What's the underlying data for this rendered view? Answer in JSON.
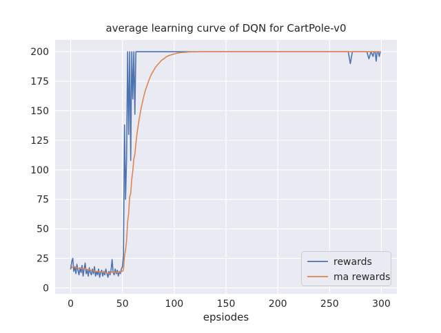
{
  "chart_data": {
    "type": "line",
    "title": "average learning curve of DQN for CartPole-v0",
    "xlabel": "epsiodes",
    "ylabel": "",
    "xlim": [
      -15,
      315
    ],
    "ylim": [
      -5,
      210
    ],
    "xticks": [
      0,
      50,
      100,
      150,
      200,
      250,
      300
    ],
    "yticks": [
      0,
      25,
      50,
      75,
      100,
      125,
      150,
      175,
      200
    ],
    "grid": true,
    "legend_position": "lower right",
    "colors": {
      "axes_background": "#EAEAF2",
      "grid": "#FFFFFF",
      "text": "#262626"
    },
    "series": [
      {
        "name": "rewards",
        "color": "#4C72B0",
        "x": [
          0,
          1,
          2,
          3,
          4,
          5,
          6,
          7,
          8,
          9,
          10,
          11,
          12,
          13,
          14,
          15,
          16,
          17,
          18,
          19,
          20,
          21,
          22,
          23,
          24,
          25,
          26,
          27,
          28,
          29,
          30,
          31,
          32,
          33,
          34,
          35,
          36,
          37,
          38,
          39,
          40,
          41,
          42,
          43,
          44,
          45,
          46,
          47,
          48,
          49,
          50,
          51,
          52,
          53,
          54,
          55,
          56,
          57,
          58,
          59,
          60,
          61,
          62,
          63,
          64,
          70,
          80,
          100,
          150,
          200,
          250,
          266,
          268,
          270,
          272,
          284,
          286,
          288,
          290,
          292,
          293,
          294,
          295,
          296,
          297,
          298,
          299
        ],
        "y": [
          16,
          22,
          25,
          14,
          18,
          12,
          20,
          15,
          11,
          17,
          13,
          19,
          10,
          16,
          21,
          12,
          15,
          10,
          17,
          13,
          11,
          16,
          12,
          18,
          10,
          14,
          11,
          16,
          9,
          13,
          15,
          10,
          14,
          11,
          16,
          12,
          9,
          14,
          11,
          15,
          24,
          13,
          11,
          16,
          12,
          15,
          10,
          14,
          12,
          16,
          18,
          28,
          138,
          75,
          110,
          200,
          130,
          200,
          108,
          200,
          160,
          200,
          147,
          200,
          200,
          200,
          200,
          200,
          200,
          200,
          200,
          200,
          200,
          190,
          200,
          200,
          200,
          194,
          200,
          196,
          200,
          200,
          192,
          200,
          200,
          196,
          200
        ]
      },
      {
        "name": "ma rewards",
        "color": "#DD8452",
        "x": [
          0,
          2,
          4,
          6,
          8,
          10,
          12,
          14,
          16,
          18,
          20,
          22,
          24,
          26,
          28,
          30,
          32,
          34,
          36,
          38,
          40,
          42,
          44,
          46,
          48,
          50,
          51,
          52,
          53,
          54,
          55,
          56,
          57,
          58,
          59,
          60,
          61,
          62,
          63,
          64,
          66,
          68,
          70,
          72,
          74,
          76,
          78,
          80,
          82,
          84,
          86,
          88,
          90,
          92,
          94,
          96,
          98,
          100,
          103,
          106,
          110,
          115,
          120,
          130,
          150,
          200,
          250,
          299
        ],
        "y": [
          16,
          18,
          17.5,
          17,
          16.5,
          16.5,
          16,
          16.5,
          15.5,
          15.5,
          14.5,
          14.5,
          14,
          14,
          13.5,
          13.5,
          13,
          13,
          12.5,
          12.5,
          13.5,
          13,
          13.5,
          13,
          13.5,
          14,
          15.5,
          27,
          32,
          40,
          56,
          63,
          77,
          80,
          92,
          99,
          109,
          113,
          122,
          130,
          142,
          152,
          160,
          167,
          172,
          177,
          181,
          184,
          187,
          189,
          191,
          193,
          194,
          195.5,
          196.5,
          197,
          197.6,
          198.1,
          198.8,
          199.2,
          199.5,
          199.8,
          199.9,
          200,
          200,
          200,
          200,
          200
        ]
      }
    ]
  },
  "legend": {
    "rewards_label": "rewards",
    "ma_rewards_label": "ma rewards"
  }
}
